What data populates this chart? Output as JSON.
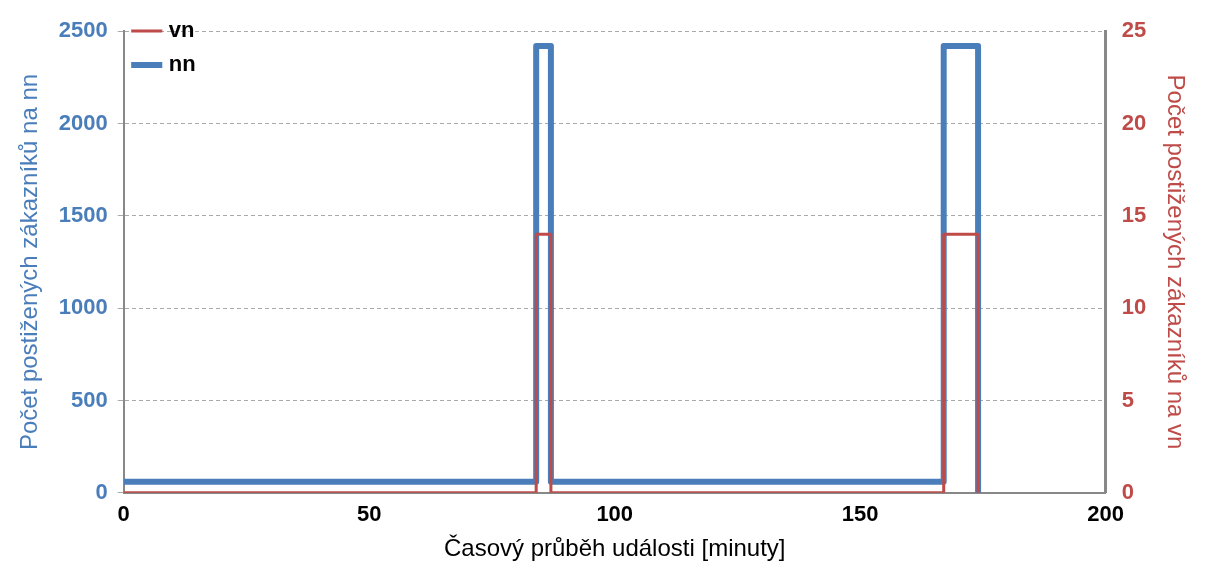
{
  "chart_data": {
    "type": "line",
    "xlabel": "Časový průběh události [minuty]",
    "ylabel": "Počet postižených zákazníků na nn",
    "y2label": "Počet postižených zákazníků na vn",
    "xlim": [
      0,
      200
    ],
    "xticks": [
      0,
      50,
      100,
      150,
      200
    ],
    "ylim": [
      0,
      2500
    ],
    "yticks": [
      0,
      500,
      1000,
      1500,
      2000,
      2500
    ],
    "y2lim": [
      0,
      25
    ],
    "y2ticks": [
      0,
      5,
      10,
      15,
      20,
      25
    ],
    "grid": "y",
    "legend": "top left",
    "marker": "none",
    "line_style": "solid",
    "series": [
      {
        "name": "nn",
        "color": "#4a7ebb",
        "x": [
          0,
          84,
          84,
          87,
          87,
          167,
          167,
          174,
          174
        ],
        "values": [
          60,
          60,
          2420,
          2420,
          60,
          60,
          2420,
          2420,
          0
        ]
      },
      {
        "name": "vn",
        "color": "#be4b48",
        "axis": "y2",
        "x": [
          0,
          84,
          84,
          87,
          87,
          167,
          167,
          174,
          174
        ],
        "values": [
          0,
          0,
          14,
          14,
          0,
          0,
          14,
          14,
          0
        ]
      }
    ]
  }
}
